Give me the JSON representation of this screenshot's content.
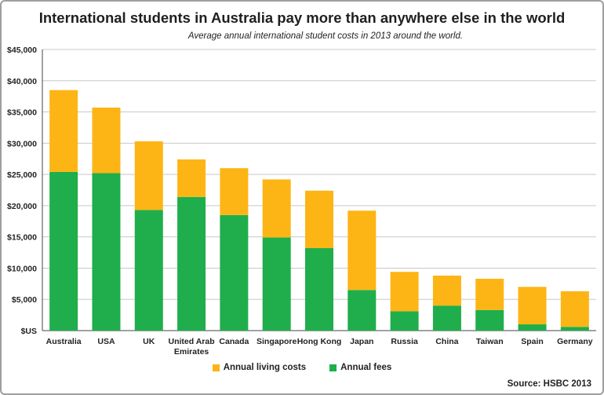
{
  "colors": {
    "living": "#FDB515",
    "fees": "#1FAE4B",
    "grid": "#c8c8c8",
    "axis": "#444444"
  },
  "chart_data": {
    "type": "bar",
    "stacked": true,
    "title": "International students in Australia pay more than anywhere else in the world",
    "subtitle": "Average annual international student costs in 2013 around the world.",
    "ylabel": "",
    "ylim": [
      0,
      45000
    ],
    "y_ticks": [
      "$US",
      "$5,000",
      "$10,000",
      "$15,000",
      "$20,000",
      "$25,000",
      "$30,000",
      "$35,000",
      "$40,000",
      "$45,000"
    ],
    "categories": [
      "Australia",
      "USA",
      "UK",
      "United Arab Emirates",
      "Canada",
      "Singapore",
      "Hong Kong",
      "Japan",
      "Russia",
      "China",
      "Taiwan",
      "Spain",
      "Germany"
    ],
    "series": [
      {
        "name": "Annual fees",
        "values": [
          25400,
          25200,
          19300,
          21400,
          18500,
          14900,
          13200,
          6500,
          3100,
          4000,
          3300,
          1000,
          600
        ]
      },
      {
        "name": "Annual living costs",
        "values": [
          13100,
          10500,
          11000,
          6000,
          7500,
          9300,
          9200,
          12700,
          6300,
          4800,
          5000,
          6000,
          5700
        ]
      }
    ],
    "legend": [
      "Annual living costs",
      "Annual fees"
    ],
    "legend_position": "bottom",
    "grid": true,
    "source": "Source: HSBC 2013"
  }
}
